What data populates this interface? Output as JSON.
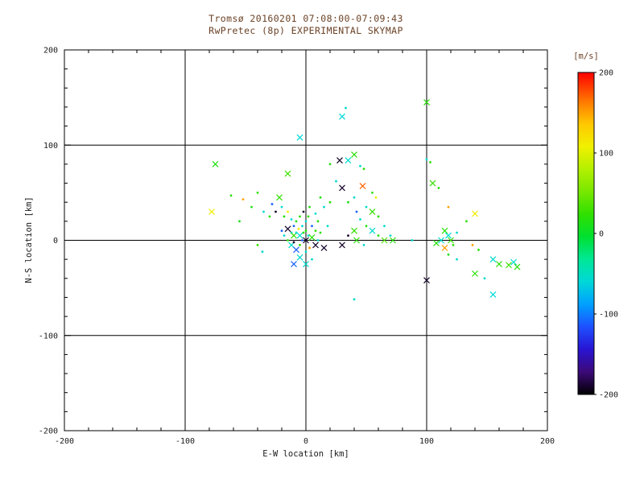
{
  "chart_data": {
    "type": "scatter",
    "title_line1": "Tromsø 20160201 07:08:00-07:09:43",
    "title_line2": "RwPretec (8p) EXPERIMENTAL SKYMAP",
    "xlabel": "E-W location [km]",
    "ylabel": "N-S location [km]",
    "xlim": [
      -200,
      200
    ],
    "ylim": [
      -200,
      200
    ],
    "xticks": [
      -200,
      -100,
      0,
      100,
      200
    ],
    "yticks": [
      -200,
      -100,
      0,
      100,
      200
    ],
    "gridlines": [
      -100,
      0,
      100
    ],
    "grid": true,
    "legend_position": "none",
    "colors": {
      "background": "#ffffff",
      "frame": "#000000",
      "tick_text": "#1a1a1a",
      "title_text": "#6b4226"
    },
    "colorbar": {
      "label": "[m/s]",
      "min": -200,
      "max": 200,
      "ticks": [
        200,
        100,
        0,
        -100,
        -200
      ],
      "stops": [
        [
          -200,
          "#000000"
        ],
        [
          -172,
          "#3c0a78"
        ],
        [
          -144,
          "#2814d2"
        ],
        [
          -116,
          "#1e50ff"
        ],
        [
          -88,
          "#00a0ff"
        ],
        [
          -60,
          "#00d8d8"
        ],
        [
          -32,
          "#00e896"
        ],
        [
          -4,
          "#00e030"
        ],
        [
          24,
          "#30e000"
        ],
        [
          52,
          "#78e800"
        ],
        [
          80,
          "#b4f000"
        ],
        [
          108,
          "#f0f000"
        ],
        [
          136,
          "#ffc800"
        ],
        [
          164,
          "#ff7800"
        ],
        [
          200,
          "#ff0000"
        ]
      ]
    },
    "points_format": [
      "x_km",
      "y_km",
      "velocity_ms",
      "marker(x=cross,d=dot)"
    ],
    "points": [
      [
        -75,
        80,
        15,
        "x"
      ],
      [
        -78,
        30,
        110,
        "x"
      ],
      [
        -62,
        47,
        20,
        "d"
      ],
      [
        -52,
        43,
        150,
        "d"
      ],
      [
        -55,
        20,
        10,
        "d"
      ],
      [
        -45,
        35,
        15,
        "d"
      ],
      [
        -40,
        50,
        20,
        "d"
      ],
      [
        -40,
        -5,
        25,
        "d"
      ],
      [
        -36,
        -12,
        -55,
        "d"
      ],
      [
        -35,
        30,
        -55,
        "d"
      ],
      [
        -30,
        25,
        20,
        "d"
      ],
      [
        -28,
        38,
        -110,
        "d"
      ],
      [
        -25,
        30,
        -190,
        "d"
      ],
      [
        -22,
        45,
        25,
        "x"
      ],
      [
        -20,
        35,
        -55,
        "d"
      ],
      [
        -18,
        25,
        15,
        "d"
      ],
      [
        -15,
        70,
        30,
        "x"
      ],
      [
        -15,
        30,
        110,
        "d"
      ],
      [
        -12,
        22,
        -55,
        "d"
      ],
      [
        -20,
        10,
        -110,
        "d"
      ],
      [
        -18,
        5,
        -55,
        "d"
      ],
      [
        -15,
        12,
        -190,
        "x"
      ],
      [
        -15,
        0,
        20,
        "d"
      ],
      [
        -12,
        8,
        -55,
        "d"
      ],
      [
        -12,
        -5,
        -55,
        "x"
      ],
      [
        -10,
        15,
        -110,
        "d"
      ],
      [
        -10,
        5,
        25,
        "x"
      ],
      [
        -10,
        -2,
        -190,
        "d"
      ],
      [
        -8,
        20,
        15,
        "d"
      ],
      [
        -8,
        8,
        -55,
        "d"
      ],
      [
        -8,
        -10,
        -110,
        "x"
      ],
      [
        -6,
        12,
        110,
        "d"
      ],
      [
        -5,
        25,
        20,
        "d"
      ],
      [
        -5,
        5,
        -55,
        "x"
      ],
      [
        -5,
        -5,
        25,
        "d"
      ],
      [
        -5,
        -18,
        -55,
        "x"
      ],
      [
        -3,
        15,
        -55,
        "d"
      ],
      [
        -3,
        0,
        -110,
        "d"
      ],
      [
        -2,
        30,
        -190,
        "d"
      ],
      [
        -2,
        8,
        20,
        "d"
      ],
      [
        0,
        20,
        -55,
        "d"
      ],
      [
        0,
        10,
        15,
        "d"
      ],
      [
        0,
        0,
        -190,
        "x"
      ],
      [
        0,
        -12,
        -55,
        "d"
      ],
      [
        0,
        -25,
        -55,
        "x"
      ],
      [
        2,
        25,
        25,
        "d"
      ],
      [
        2,
        5,
        -55,
        "d"
      ],
      [
        3,
        35,
        15,
        "d"
      ],
      [
        3,
        -8,
        150,
        "d"
      ],
      [
        5,
        15,
        -110,
        "d"
      ],
      [
        5,
        3,
        20,
        "x"
      ],
      [
        5,
        -20,
        -55,
        "d"
      ],
      [
        8,
        28,
        -55,
        "d"
      ],
      [
        8,
        10,
        25,
        "d"
      ],
      [
        8,
        -5,
        -190,
        "x"
      ],
      [
        10,
        20,
        15,
        "d"
      ],
      [
        10,
        0,
        -55,
        "d"
      ],
      [
        12,
        8,
        20,
        "d"
      ],
      [
        12,
        45,
        15,
        "d"
      ],
      [
        -10,
        -25,
        -110,
        "x"
      ],
      [
        15,
        -8,
        -190,
        "x"
      ],
      [
        18,
        15,
        -55,
        "d"
      ],
      [
        15,
        35,
        -55,
        "d"
      ],
      [
        20,
        40,
        20,
        "d"
      ],
      [
        -5,
        108,
        -60,
        "x"
      ],
      [
        30,
        130,
        -60,
        "x"
      ],
      [
        33,
        139,
        -55,
        "d"
      ],
      [
        40,
        90,
        20,
        "x"
      ],
      [
        35,
        84,
        -55,
        "x"
      ],
      [
        28,
        84,
        -190,
        "x"
      ],
      [
        20,
        80,
        15,
        "d"
      ],
      [
        45,
        78,
        -55,
        "d"
      ],
      [
        48,
        75,
        20,
        "d"
      ],
      [
        25,
        62,
        -55,
        "d"
      ],
      [
        30,
        55,
        -190,
        "x"
      ],
      [
        47,
        57,
        170,
        "x"
      ],
      [
        55,
        50,
        20,
        "d"
      ],
      [
        58,
        45,
        110,
        "d"
      ],
      [
        40,
        45,
        -55,
        "d"
      ],
      [
        35,
        40,
        15,
        "d"
      ],
      [
        50,
        35,
        -55,
        "d"
      ],
      [
        55,
        30,
        25,
        "x"
      ],
      [
        60,
        25,
        20,
        "d"
      ],
      [
        42,
        30,
        -110,
        "d"
      ],
      [
        45,
        22,
        -55,
        "d"
      ],
      [
        50,
        15,
        15,
        "d"
      ],
      [
        55,
        10,
        -55,
        "x"
      ],
      [
        60,
        5,
        20,
        "d"
      ],
      [
        65,
        15,
        -55,
        "d"
      ],
      [
        40,
        10,
        25,
        "x"
      ],
      [
        35,
        5,
        -190,
        "d"
      ],
      [
        42,
        0,
        20,
        "x"
      ],
      [
        48,
        -5,
        -55,
        "d"
      ],
      [
        30,
        -5,
        -190,
        "x"
      ],
      [
        65,
        0,
        35,
        "x"
      ],
      [
        70,
        5,
        -55,
        "d"
      ],
      [
        72,
        0,
        20,
        "x"
      ],
      [
        88,
        0,
        -55,
        "d"
      ],
      [
        100,
        145,
        20,
        "x"
      ],
      [
        100,
        85,
        -55,
        "d"
      ],
      [
        103,
        82,
        20,
        "d"
      ],
      [
        105,
        60,
        25,
        "x"
      ],
      [
        110,
        55,
        15,
        "d"
      ],
      [
        118,
        35,
        150,
        "d"
      ],
      [
        115,
        10,
        20,
        "x"
      ],
      [
        118,
        5,
        -55,
        "x"
      ],
      [
        120,
        0,
        25,
        "x"
      ],
      [
        112,
        0,
        -55,
        "x"
      ],
      [
        108,
        -3,
        20,
        "x"
      ],
      [
        115,
        -8,
        150,
        "x"
      ],
      [
        122,
        -5,
        20,
        "d"
      ],
      [
        125,
        8,
        -55,
        "d"
      ],
      [
        118,
        -15,
        15,
        "d"
      ],
      [
        125,
        -20,
        -55,
        "d"
      ],
      [
        140,
        28,
        110,
        "x"
      ],
      [
        133,
        20,
        20,
        "d"
      ],
      [
        138,
        -5,
        150,
        "d"
      ],
      [
        143,
        -10,
        20,
        "d"
      ],
      [
        140,
        -35,
        20,
        "x"
      ],
      [
        148,
        -40,
        -55,
        "d"
      ],
      [
        155,
        -20,
        -55,
        "x"
      ],
      [
        160,
        -25,
        20,
        "x"
      ],
      [
        168,
        -26,
        25,
        "x"
      ],
      [
        172,
        -23,
        -55,
        "x"
      ],
      [
        175,
        -28,
        20,
        "x"
      ],
      [
        155,
        -57,
        -60,
        "x"
      ],
      [
        100,
        -42,
        -190,
        "x"
      ],
      [
        40,
        -62,
        -55,
        "d"
      ]
    ]
  }
}
